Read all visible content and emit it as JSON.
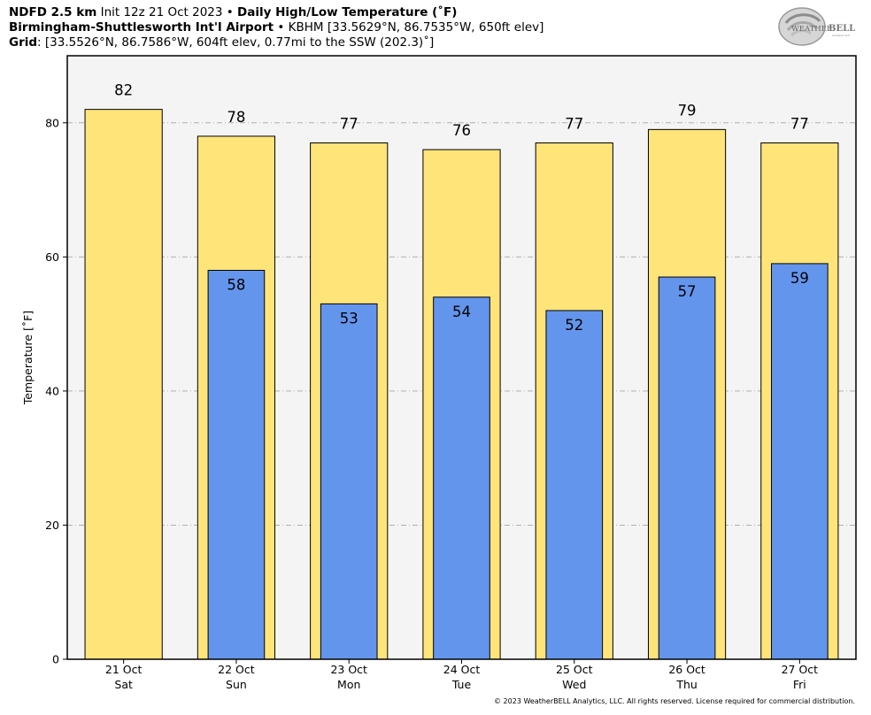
{
  "header": {
    "line1_bold_a": "NDFD 2.5 km",
    "line1_normal": " Init 12z 21 Oct 2023 • ",
    "line1_bold_b": "Daily High/Low Temperature (˚F)",
    "line2_bold": "Birmingham-Shuttlesworth Int'l Airport",
    "line2_normal": " • KBHM [33.5629°N, 86.7535°W, 650ft elev]",
    "line3_bold": "Grid",
    "line3_normal": ": [33.5526°N, 86.7586°W, 604ft elev, 0.77mi to the SSW (202.3)˚]"
  },
  "logo": {
    "text_a": "WEATHER",
    "text_b": "BELL",
    "small": "Analytics LLC"
  },
  "copyright": "© 2023 WeatherBELL Analytics, LLC. All rights reserved. License required for commercial distribution.",
  "colors": {
    "high": "#ffe47a",
    "low": "#6495ed",
    "plot_bg": "#f4f4f4",
    "grid": "#b0b0b0"
  },
  "chart_data": {
    "type": "bar",
    "ylabel": "Temperature [˚F]",
    "ylim": [
      0,
      90
    ],
    "yticks": [
      0,
      20,
      40,
      60,
      80
    ],
    "grid": true,
    "categories": [
      [
        "21 Oct",
        "Sat"
      ],
      [
        "22 Oct",
        "Sun"
      ],
      [
        "23 Oct",
        "Mon"
      ],
      [
        "24 Oct",
        "Tue"
      ],
      [
        "25 Oct",
        "Wed"
      ],
      [
        "26 Oct",
        "Thu"
      ],
      [
        "27 Oct",
        "Fri"
      ]
    ],
    "series": [
      {
        "name": "High",
        "values": [
          82,
          78,
          77,
          76,
          77,
          79,
          77
        ]
      },
      {
        "name": "Low",
        "values": [
          null,
          58,
          53,
          54,
          52,
          57,
          59
        ]
      }
    ]
  }
}
